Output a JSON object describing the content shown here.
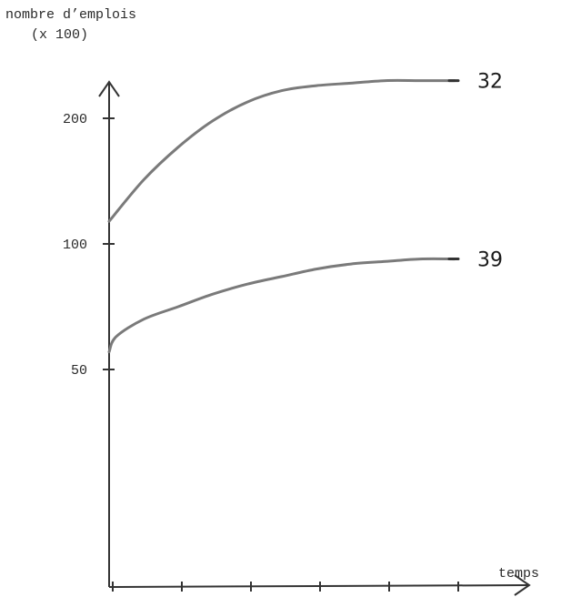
{
  "chart_data": {
    "type": "line",
    "title": "",
    "ylabel_lines": [
      "nombre d’emplois",
      "(x 100)"
    ],
    "xlabel": "temps",
    "y_ticks": [
      50,
      100,
      200
    ],
    "x_tick_count": 6,
    "grid": false,
    "series": [
      {
        "name": "32",
        "color": "#7a7a7a",
        "x": [
          0,
          0.5,
          1,
          1.5,
          2,
          2.5,
          3,
          3.5,
          4,
          4.5,
          5
        ],
        "values": [
          118,
          151,
          177,
          198,
          213,
          222,
          226,
          228,
          230,
          230,
          230
        ]
      },
      {
        "name": "39",
        "color": "#7a7a7a",
        "x": [
          0,
          0.1,
          0.5,
          1,
          1.5,
          2,
          2.5,
          3,
          3.5,
          4,
          4.5,
          5
        ],
        "values": [
          57,
          63,
          70,
          75,
          80,
          84,
          87,
          90,
          92,
          93,
          94,
          94
        ]
      }
    ]
  }
}
